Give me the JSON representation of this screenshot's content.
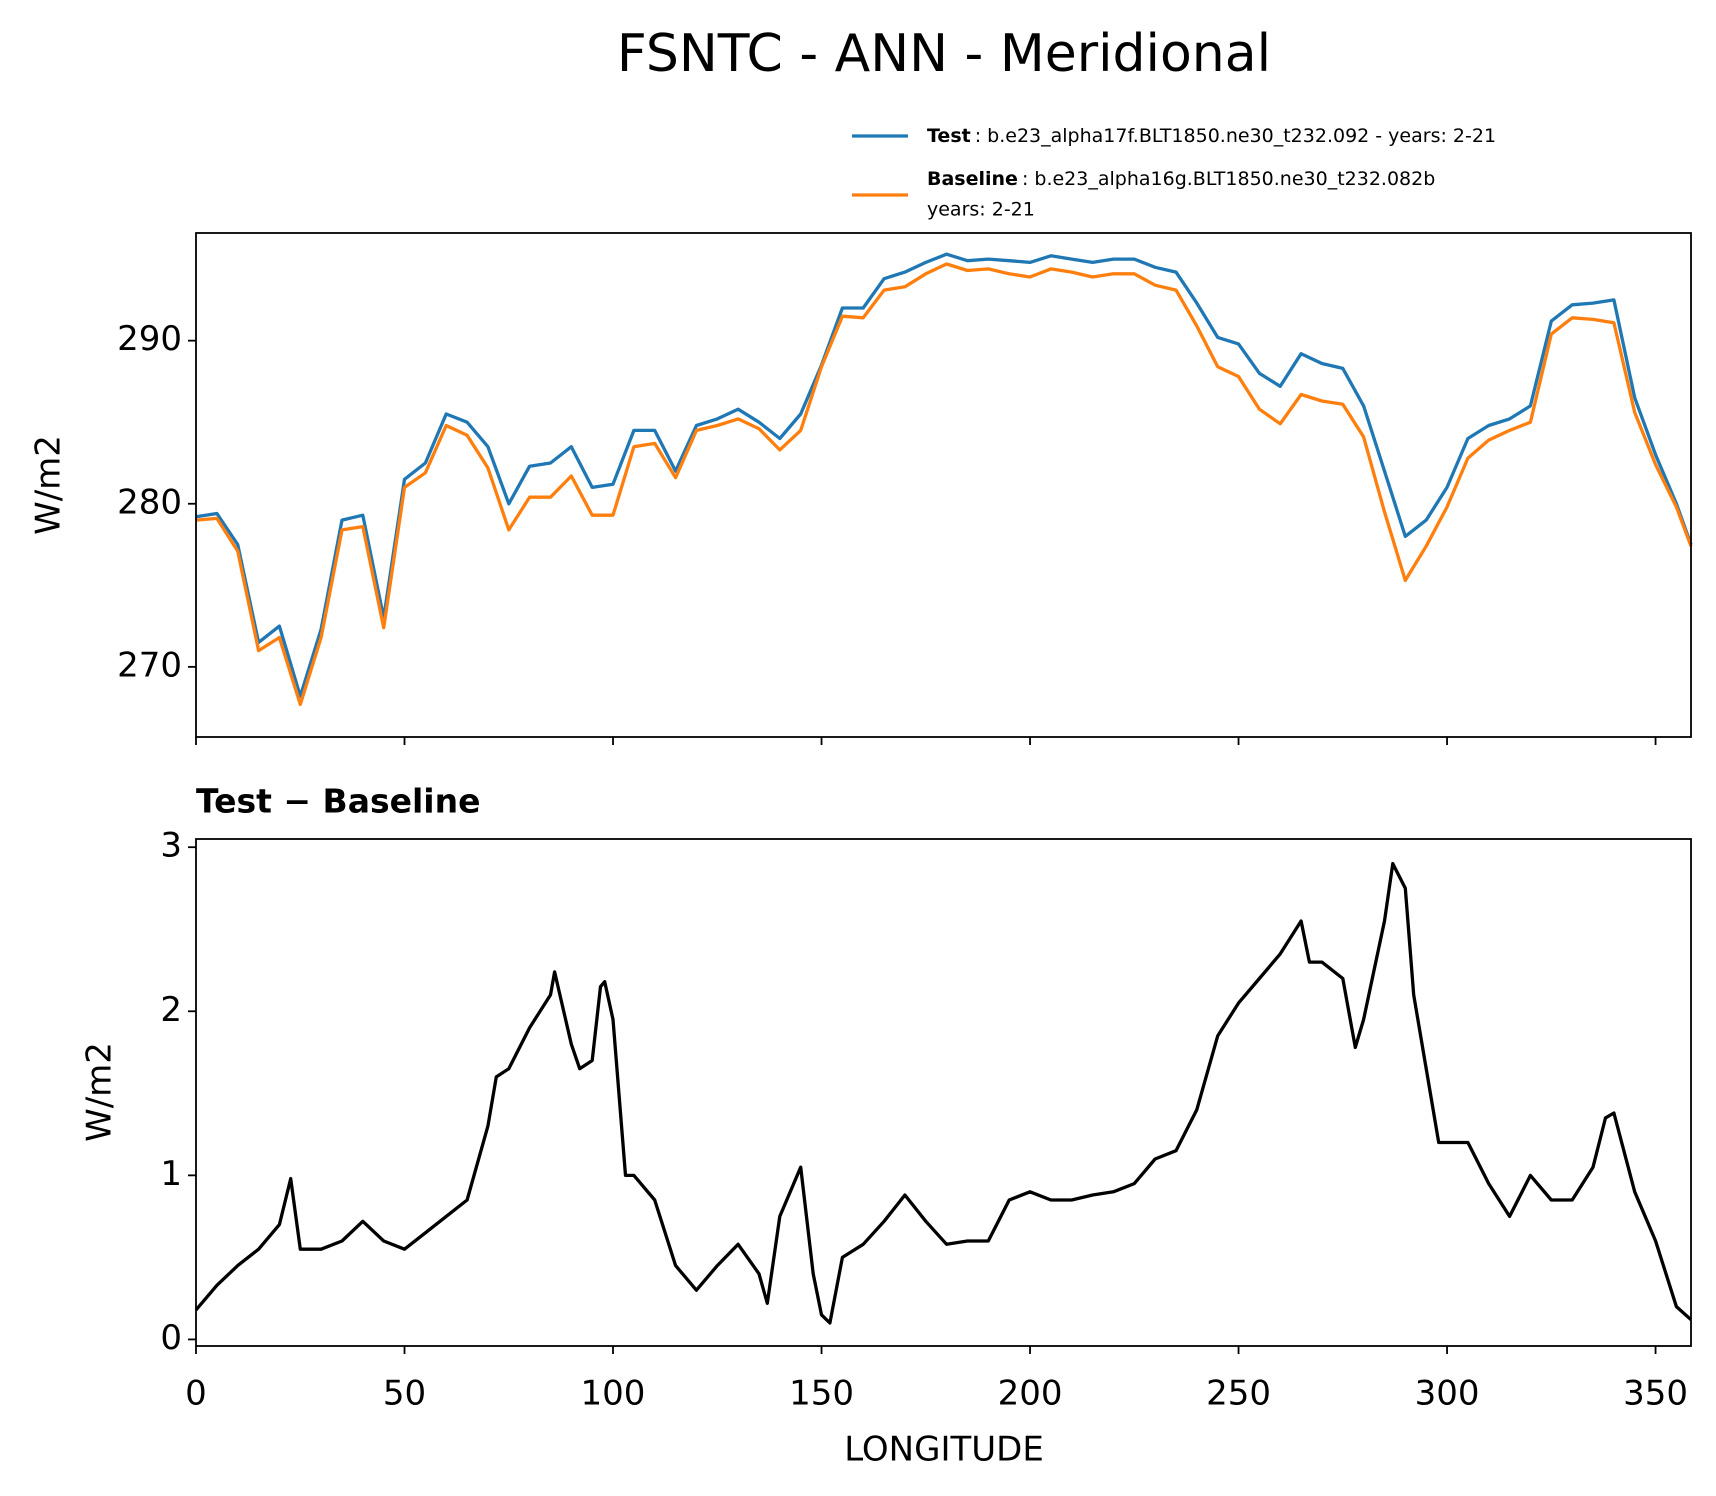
{
  "chart_data": [
    {
      "type": "line",
      "title": "FSNTC - ANN - Meridional",
      "ylabel": "W/m2",
      "xlim": [
        0,
        358.5
      ],
      "ylim": [
        265.7,
        296.6
      ],
      "yticks": [
        270,
        280,
        290
      ],
      "x": [
        0,
        5,
        10,
        15,
        20,
        25,
        30,
        35,
        40,
        45,
        50,
        55,
        60,
        65,
        70,
        75,
        80,
        85,
        90,
        95,
        100,
        105,
        110,
        115,
        120,
        125,
        130,
        135,
        140,
        145,
        150,
        155,
        160,
        165,
        170,
        175,
        180,
        185,
        190,
        195,
        200,
        205,
        210,
        215,
        220,
        225,
        230,
        235,
        240,
        245,
        250,
        255,
        260,
        265,
        270,
        275,
        280,
        285,
        290,
        295,
        300,
        305,
        310,
        315,
        320,
        325,
        330,
        335,
        340,
        345,
        350,
        355,
        358.5
      ],
      "legend": "upper right",
      "series": [
        {
          "name": "Test",
          "description": ": b.e23_alpha17f.BLT1850.ne30_t232.092 - years: 2-21",
          "color": "#1f77b4",
          "values": [
            279.2,
            279.4,
            277.5,
            271.5,
            272.5,
            268.2,
            272.3,
            279,
            279.3,
            273,
            281.5,
            282.5,
            285.5,
            285,
            283.5,
            280,
            282.3,
            282.5,
            283.5,
            281,
            281.2,
            284.5,
            284.5,
            282,
            284.8,
            285.2,
            285.8,
            285,
            284,
            285.5,
            288.5,
            292,
            292,
            293.8,
            294.2,
            294.8,
            295.3,
            294.9,
            295,
            294.9,
            294.8,
            295.2,
            295,
            294.8,
            295,
            295,
            294.5,
            294.2,
            292.3,
            290.2,
            289.8,
            288,
            287.2,
            289.2,
            288.6,
            288.3,
            286,
            282,
            278,
            279,
            281,
            284,
            284.8,
            285.2,
            286,
            291.2,
            292.2,
            292.3,
            292.5,
            286.5,
            283,
            280,
            277.5
          ]
        },
        {
          "name": "Baseline",
          "description": ": b.e23_alpha16g.BLT1850.ne30_t232.082b",
          "description2": "years: 2-21",
          "color": "#ff7f0e",
          "values": [
            279.0,
            279.1,
            277.1,
            271.0,
            271.8,
            267.7,
            271.8,
            278.4,
            278.6,
            272.4,
            281.0,
            281.9,
            284.8,
            284.2,
            282.2,
            278.4,
            280.4,
            280.4,
            281.7,
            279.3,
            279.3,
            283.5,
            283.7,
            281.6,
            284.5,
            284.8,
            285.2,
            284.6,
            283.3,
            284.5,
            288.4,
            291.5,
            291.4,
            293.1,
            293.3,
            294.1,
            294.7,
            294.3,
            294.4,
            294.1,
            293.9,
            294.4,
            294.2,
            293.9,
            294.1,
            294.1,
            293.4,
            293.1,
            290.9,
            288.4,
            287.8,
            285.8,
            284.9,
            286.7,
            286.3,
            286.1,
            284.1,
            279.5,
            275.3,
            277.4,
            279.8,
            282.8,
            283.9,
            284.5,
            285.0,
            290.4,
            291.4,
            291.3,
            291.1,
            285.6,
            282.4,
            279.8,
            277.4
          ]
        }
      ]
    },
    {
      "type": "line",
      "title": "Test − Baseline",
      "xlabel": "LONGITUDE",
      "ylabel": "W/m2",
      "xlim": [
        0,
        358.5
      ],
      "ylim": [
        -0.04,
        3.05
      ],
      "xticks": [
        0,
        50,
        100,
        150,
        200,
        250,
        300,
        350
      ],
      "yticks": [
        0,
        1,
        2,
        3
      ],
      "x": [
        0,
        5,
        10,
        15,
        20,
        22.7,
        25,
        30,
        35,
        40,
        45,
        50,
        55,
        60,
        65,
        70,
        72,
        75,
        80,
        85,
        86,
        90,
        92,
        95,
        97,
        98,
        100,
        103,
        105,
        110,
        115,
        120,
        125,
        130,
        135,
        137,
        140,
        145,
        148,
        150,
        152,
        155,
        160,
        165,
        170,
        175,
        180,
        185,
        190,
        195,
        200,
        205,
        210,
        215,
        220,
        225,
        230,
        235,
        240,
        245,
        250,
        255,
        260,
        265,
        267,
        270,
        275,
        278,
        280,
        285,
        287,
        290,
        292,
        295,
        298,
        300,
        305,
        310,
        315,
        320,
        325,
        330,
        335,
        338,
        340,
        345,
        350,
        355,
        358.5
      ],
      "series": [
        {
          "name": "Test − Baseline",
          "color": "#000000",
          "values": [
            0.18,
            0.33,
            0.45,
            0.55,
            0.7,
            0.98,
            0.55,
            0.55,
            0.6,
            0.72,
            0.6,
            0.55,
            0.65,
            0.75,
            0.85,
            1.3,
            1.6,
            1.65,
            1.9,
            2.1,
            2.24,
            1.8,
            1.65,
            1.7,
            2.15,
            2.18,
            1.95,
            1.0,
            1.0,
            0.85,
            0.45,
            0.3,
            0.45,
            0.58,
            0.4,
            0.22,
            0.75,
            1.05,
            0.4,
            0.15,
            0.1,
            0.5,
            0.58,
            0.72,
            0.88,
            0.72,
            0.58,
            0.6,
            0.6,
            0.85,
            0.9,
            0.85,
            0.85,
            0.88,
            0.9,
            0.95,
            1.1,
            1.15,
            1.4,
            1.85,
            2.05,
            2.2,
            2.35,
            2.55,
            2.3,
            2.3,
            2.2,
            1.78,
            1.95,
            2.55,
            2.9,
            2.75,
            2.1,
            1.65,
            1.2,
            1.2,
            1.2,
            0.95,
            0.75,
            1.0,
            0.85,
            0.85,
            1.05,
            1.35,
            1.38,
            0.9,
            0.6,
            0.2,
            0.12
          ]
        }
      ]
    }
  ]
}
